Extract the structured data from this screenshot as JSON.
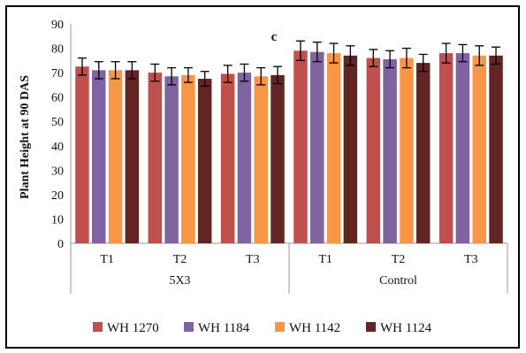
{
  "chart_data": {
    "type": "bar",
    "panel_letter": "c",
    "ylabel": "Plant Height at 90 DAS",
    "ylim": [
      0,
      90
    ],
    "yticks": [
      0,
      10,
      20,
      30,
      40,
      50,
      60,
      70,
      80,
      90
    ],
    "groups": [
      {
        "label": "5X3",
        "categories": [
          "T1",
          "T2",
          "T3"
        ]
      },
      {
        "label": "Control",
        "categories": [
          "T1",
          "T2",
          "T3"
        ]
      }
    ],
    "series": [
      {
        "name": "WH 1270",
        "color": "#c0504d",
        "values": [
          72.5,
          70,
          69.5,
          79,
          76,
          78
        ],
        "errors": [
          3.5,
          3.5,
          3.5,
          4,
          3.5,
          4
        ]
      },
      {
        "name": "WH 1184",
        "color": "#8064a2",
        "values": [
          71,
          68.5,
          70,
          78.5,
          75.5,
          78
        ],
        "errors": [
          3.5,
          3.5,
          3.5,
          4,
          3.5,
          3.5
        ]
      },
      {
        "name": "WH 1142",
        "color": "#f79646",
        "values": [
          71,
          69,
          68.5,
          78,
          76,
          77
        ],
        "errors": [
          3.5,
          3,
          3.5,
          4,
          4,
          4
        ]
      },
      {
        "name": "WH 1124",
        "color": "#632523",
        "values": [
          71,
          67.5,
          69,
          77,
          74,
          77
        ],
        "errors": [
          3.5,
          3,
          3.5,
          4,
          3.5,
          3.5
        ]
      }
    ],
    "grid": false,
    "legend_position": "bottom"
  }
}
